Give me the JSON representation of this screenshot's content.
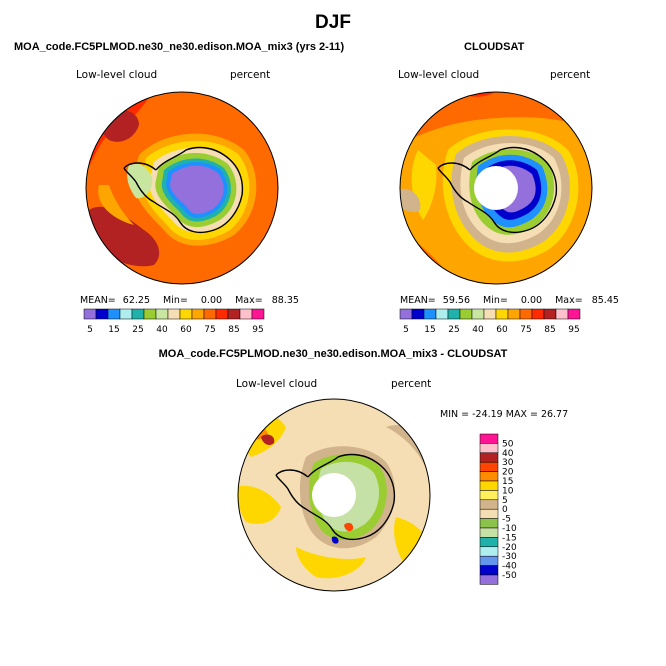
{
  "title": "DJF",
  "panels": [
    {
      "title": "MOA_code.FC5PLMOD.ne30_ne30.edison.MOA_mix3 (yrs 2-11)",
      "left_label": "Low-level cloud",
      "right_label": "percent",
      "stats": {
        "mean_label": "MEAN=",
        "mean": "62.25",
        "min_label": "Min=",
        "min": "0.00",
        "max_label": "Max=",
        "max": "88.35"
      }
    },
    {
      "title": "CLOUDSAT",
      "left_label": "Low-level cloud",
      "right_label": "percent",
      "stats": {
        "mean_label": "MEAN=",
        "mean": "59.56",
        "min_label": "Min=",
        "min": "0.00",
        "max_label": "Max=",
        "max": "85.45"
      }
    },
    {
      "title": "MOA_code.FC5PLMOD.ne30_ne30.edison.MOA_mix3 - CLOUDSAT",
      "left_label": "Low-level cloud",
      "right_label": "percent",
      "stats_text": "MIN = -24.19  MAX =  26.77"
    }
  ],
  "colorbar_abs": {
    "labels": [
      "5",
      "15",
      "25",
      "40",
      "60",
      "75",
      "85",
      "95"
    ],
    "colors": [
      "#9370db",
      "#0000cd",
      "#1e90ff",
      "#afeeee",
      "#20b2aa",
      "#9acd32",
      "#c8e6a0",
      "#f5deb3",
      "#ffd700",
      "#ffa500",
      "#ff6a00",
      "#ff2a00",
      "#b22222",
      "#ffc0cb",
      "#ff1493"
    ]
  },
  "colorbar_diff": {
    "labels": [
      "50",
      "40",
      "30",
      "20",
      "15",
      "10",
      "5",
      "0",
      "-5",
      "-10",
      "-15",
      "-20",
      "-30",
      "-40",
      "-50"
    ],
    "colors": [
      "#ff1493",
      "#ffc0cb",
      "#b22222",
      "#ff4500",
      "#ff8c00",
      "#ffd700",
      "#ffef5a",
      "#d2b48c",
      "#f5deb3",
      "#8bc34a",
      "#c5e1a5",
      "#20b2aa",
      "#afeeee",
      "#6495ed",
      "#0000cd",
      "#9370db"
    ]
  },
  "chart_data": [
    {
      "type": "heatmap",
      "title": "MOA_code.FC5PLMOD.ne30_ne30.edison.MOA_mix3 (yrs 2-11)",
      "variable": "Low-level cloud",
      "units": "percent",
      "season": "DJF",
      "mean": 62.25,
      "min": 0.0,
      "max": 88.35,
      "levels": [
        5,
        10,
        15,
        20,
        25,
        30,
        40,
        50,
        60,
        70,
        75,
        80,
        85,
        90,
        95
      ]
    },
    {
      "type": "heatmap",
      "title": "CLOUDSAT",
      "variable": "Low-level cloud",
      "units": "percent",
      "season": "DJF",
      "mean": 59.56,
      "min": 0.0,
      "max": 85.45,
      "levels": [
        5,
        10,
        15,
        20,
        25,
        30,
        40,
        50,
        60,
        70,
        75,
        80,
        85,
        90,
        95
      ]
    },
    {
      "type": "heatmap",
      "title": "MOA_code.FC5PLMOD.ne30_ne30.edison.MOA_mix3 - CLOUDSAT",
      "variable": "Low-level cloud",
      "units": "percent",
      "season": "DJF",
      "min": -24.19,
      "max": 26.77,
      "levels": [
        -50,
        -40,
        -30,
        -20,
        -15,
        -10,
        -5,
        0,
        5,
        10,
        15,
        20,
        30,
        40,
        50
      ]
    }
  ]
}
